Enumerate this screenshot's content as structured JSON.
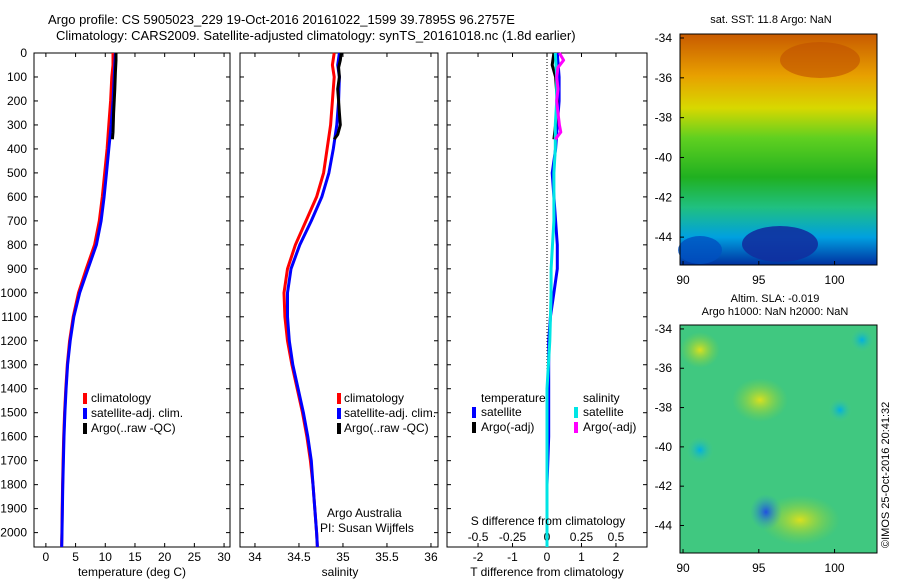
{
  "header": {
    "line1": "Argo profile: CS 5905023_229 19-Oct-2016 20161022_1599 39.7895S 96.2757E",
    "line2": "Climatology: CARS2009. Satellite-adjusted climatology: synTS_20161018.nc (1.8d earlier)"
  },
  "colors": {
    "climatology": "#ff0000",
    "satellite": "#0000ff",
    "argo": "#000000",
    "s_satellite": "#00e5e5",
    "s_argo": "#ff00ff"
  },
  "y_axis": {
    "ticks": [
      "0",
      "100",
      "200",
      "300",
      "400",
      "500",
      "600",
      "700",
      "800",
      "900",
      "1000",
      "1100",
      "1200",
      "1300",
      "1400",
      "1500",
      "1600",
      "1700",
      "1800",
      "1900",
      "2000"
    ]
  },
  "legend_profiles": {
    "climatology": "climatology",
    "satellite": "satellite-adj. clim.",
    "argo": "Argo(..raw -QC)"
  },
  "legend_diff": {
    "temp_title": "temperature",
    "sal_title": "salinity",
    "satellite": "satellite",
    "argo": "Argo(-adj)"
  },
  "annotations": {
    "org": "Argo Australia",
    "pi": "PI: Susan Wijffels",
    "s_diff_label": "S difference from climatology"
  },
  "maps": {
    "sst_title": "sat. SST: 11.8  Argo: NaN",
    "sla_title1": "Altim. SLA: -0.019",
    "sla_title2": "Argo h1000: NaN h2000: NaN",
    "y_ticks": [
      "-34",
      "-36",
      "-38",
      "-40",
      "-42",
      "-44"
    ],
    "x_ticks": [
      "90",
      "95",
      "100"
    ]
  },
  "credit": "©IMOS 25-Oct-2016 20:41:32",
  "chart_data": [
    {
      "type": "line",
      "xlabel": "temperature (deg C)",
      "xticks": [
        "0",
        "5",
        "10",
        "15",
        "20",
        "25",
        "30"
      ],
      "xlim": [
        -2,
        31
      ],
      "ylim": [
        2060,
        0
      ],
      "series": [
        {
          "name": "climatology",
          "y": [
            0,
            50,
            100,
            200,
            300,
            400,
            500,
            600,
            700,
            800,
            900,
            1000,
            1100,
            1200,
            1300,
            1400,
            1500,
            1600,
            1700,
            1800,
            1900,
            2000,
            2060
          ],
          "values": [
            11.3,
            11.3,
            11.1,
            10.9,
            10.6,
            10.3,
            9.9,
            9.5,
            9.0,
            8.2,
            6.8,
            5.5,
            4.6,
            4.0,
            3.6,
            3.35,
            3.15,
            3.0,
            2.9,
            2.82,
            2.75,
            2.7,
            2.65
          ]
        },
        {
          "name": "satellite-adj. clim.",
          "y": [
            0,
            50,
            100,
            200,
            300,
            400,
            500,
            600,
            700,
            800,
            900,
            1000,
            1100,
            1200,
            1300,
            1400,
            1500,
            1600,
            1700,
            1800,
            1900,
            2000,
            2060
          ],
          "values": [
            11.7,
            11.6,
            11.5,
            11.3,
            11.0,
            10.6,
            10.2,
            9.8,
            9.3,
            8.5,
            7.1,
            5.7,
            4.7,
            4.1,
            3.65,
            3.4,
            3.2,
            3.05,
            2.95,
            2.85,
            2.78,
            2.72,
            2.67
          ]
        },
        {
          "name": "Argo(..raw -QC)",
          "y": [
            0,
            30,
            80,
            150,
            250,
            330,
            360
          ],
          "values": [
            11.8,
            11.8,
            11.7,
            11.6,
            11.4,
            11.3,
            11.2
          ]
        }
      ]
    },
    {
      "type": "line",
      "xlabel": "salinity",
      "xticks": [
        "34",
        "34.5",
        "35",
        "35.5",
        "36"
      ],
      "xlim": [
        33.83,
        36.08
      ],
      "ylim": [
        2060,
        0
      ],
      "series": [
        {
          "name": "climatology",
          "y": [
            0,
            50,
            100,
            200,
            300,
            400,
            500,
            600,
            700,
            800,
            900,
            1000,
            1100,
            1200,
            1300,
            1400,
            1500,
            1600,
            1700,
            1800,
            1900,
            2000,
            2060
          ],
          "values": [
            34.9,
            34.88,
            34.9,
            34.88,
            34.86,
            34.82,
            34.78,
            34.7,
            34.58,
            34.46,
            34.37,
            34.33,
            34.34,
            34.37,
            34.42,
            34.48,
            34.54,
            34.59,
            34.63,
            34.66,
            34.68,
            34.7,
            34.71
          ]
        },
        {
          "name": "satellite-adj. clim.",
          "y": [
            0,
            50,
            100,
            200,
            300,
            400,
            500,
            600,
            700,
            800,
            900,
            1000,
            1100,
            1200,
            1300,
            1400,
            1500,
            1600,
            1700,
            1800,
            1900,
            2000,
            2060
          ],
          "values": [
            34.96,
            34.94,
            34.96,
            34.95,
            34.93,
            34.89,
            34.84,
            34.76,
            34.64,
            34.51,
            34.41,
            34.37,
            34.37,
            34.39,
            34.43,
            34.49,
            34.55,
            34.6,
            34.64,
            34.66,
            34.68,
            34.7,
            34.71
          ]
        },
        {
          "name": "Argo(..raw -QC)",
          "y": [
            0,
            30,
            60,
            100,
            150,
            200,
            250,
            300,
            340,
            360
          ],
          "values": [
            34.98,
            34.97,
            34.95,
            34.96,
            34.94,
            34.95,
            34.96,
            34.97,
            34.94,
            34.9
          ]
        }
      ]
    },
    {
      "type": "line",
      "xlabel": "T difference from climatology",
      "xticks": [
        "-2",
        "-1",
        "0",
        "1",
        "2"
      ],
      "s_xticks": [
        "-0.5",
        "-0.25",
        "0",
        "0.25",
        "0.5"
      ],
      "xlim": [
        -2.9,
        2.9
      ],
      "ylim": [
        2060,
        0
      ],
      "series": [
        {
          "name": "temperature satellite",
          "y": [
            0,
            100,
            200,
            300,
            400,
            500,
            600,
            700,
            800,
            900,
            1000,
            1100,
            1200,
            1300,
            1400,
            1600,
            1800,
            2000,
            2060
          ],
          "values": [
            0.3,
            0.35,
            0.35,
            0.3,
            0.25,
            0.15,
            0.2,
            0.25,
            0.3,
            0.3,
            0.2,
            0.1,
            0.05,
            0.05,
            0.05,
            0.05,
            0.0,
            0.0,
            0.0
          ]
        },
        {
          "name": "temperature Argo(-adj)",
          "y": [
            0,
            50,
            100,
            200,
            300,
            360
          ],
          "values": [
            0.2,
            0.15,
            0.25,
            0.3,
            0.25,
            0.2
          ]
        },
        {
          "name": "salinity satellite",
          "y": [
            0,
            100,
            200,
            300,
            400,
            500,
            700,
            800,
            900,
            1000,
            1200,
            1400,
            1600,
            1800,
            2000,
            2060
          ],
          "values": [
            0.06,
            0.07,
            0.07,
            0.06,
            0.06,
            0.05,
            0.05,
            0.04,
            0.03,
            0.03,
            0.02,
            0.0,
            0.0,
            0.0,
            0.0,
            0.0
          ]
        },
        {
          "name": "salinity Argo(-adj)",
          "y": [
            0,
            30,
            60,
            100,
            150,
            200,
            250,
            300,
            330,
            360
          ],
          "values": [
            0.09,
            0.12,
            0.08,
            0.07,
            0.08,
            0.07,
            0.08,
            0.09,
            0.1,
            0.06
          ]
        }
      ]
    }
  ]
}
